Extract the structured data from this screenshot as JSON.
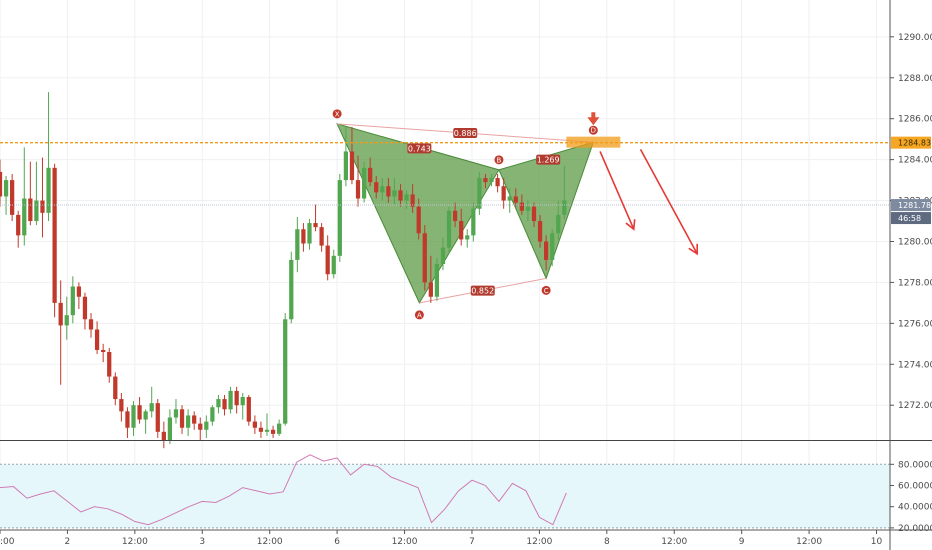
{
  "chart_data": {
    "type": "candlestick",
    "colors": {
      "up": "#53a650",
      "down": "#c0392b",
      "pattern_fill": "#5d9b47",
      "resistance": "#f29b18",
      "arrow": "#e53935",
      "rsi_line": "#d07ab2",
      "rsi_band": "#e6f7fb",
      "grid": "#eef0f2"
    },
    "y_axis": {
      "range": [
        1270.3,
        1291.8
      ],
      "ticks": [
        "1272.00",
        "1274.00",
        "1276.00",
        "1278.00",
        "1280.00",
        "1282.00",
        "1284.00",
        "1286.00",
        "1288.00",
        "1290.00"
      ],
      "tick_values": [
        1272,
        1274,
        1276,
        1278,
        1280,
        1282,
        1284,
        1286,
        1288,
        1290
      ]
    },
    "x_axis": {
      "range": [
        0,
        66
      ],
      "ticks": [
        {
          "label": ":00",
          "x": 0
        },
        {
          "label": "2",
          "x": 5
        },
        {
          "label": "12:00",
          "x": 10
        },
        {
          "label": "3",
          "x": 15
        },
        {
          "label": "12:00",
          "x": 20
        },
        {
          "label": "6",
          "x": 25
        },
        {
          "label": "12:00",
          "x": 30
        },
        {
          "label": "7",
          "x": 35
        },
        {
          "label": "12:00",
          "x": 40
        },
        {
          "label": "8",
          "x": 45
        },
        {
          "label": "12:00",
          "x": 50
        },
        {
          "label": "9",
          "x": 55
        },
        {
          "label": "12:00",
          "x": 60
        },
        {
          "label": "10",
          "x": 65
        }
      ]
    },
    "candles": [
      [
        0.0,
        1283.4,
        1284.0,
        1281.7,
        1282.2
      ],
      [
        0.45,
        1282.2,
        1283.2,
        1281.3,
        1283.0
      ],
      [
        0.9,
        1283.0,
        1283.3,
        1281.0,
        1281.3
      ],
      [
        1.35,
        1281.3,
        1281.5,
        1279.7,
        1280.3
      ],
      [
        1.8,
        1280.3,
        1284.6,
        1279.8,
        1282.1
      ],
      [
        2.25,
        1282.1,
        1283.9,
        1280.8,
        1281.0
      ],
      [
        2.7,
        1281.0,
        1283.9,
        1280.8,
        1282.0
      ],
      [
        3.15,
        1282.0,
        1284.1,
        1280.2,
        1281.4
      ],
      [
        3.6,
        1281.4,
        1287.3,
        1281.0,
        1283.6
      ],
      [
        4.05,
        1283.6,
        1283.8,
        1276.3,
        1277.0
      ],
      [
        4.5,
        1277.0,
        1278.1,
        1273.0,
        1275.9
      ],
      [
        4.95,
        1275.9,
        1277.3,
        1275.2,
        1276.4
      ],
      [
        5.4,
        1276.4,
        1278.3,
        1276.0,
        1277.8
      ],
      [
        5.85,
        1277.8,
        1278.0,
        1276.7,
        1277.3
      ],
      [
        6.3,
        1277.3,
        1277.5,
        1275.7,
        1276.2
      ],
      [
        6.75,
        1276.2,
        1276.5,
        1275.3,
        1275.7
      ],
      [
        7.2,
        1275.7,
        1276.1,
        1274.5,
        1274.7
      ],
      [
        7.65,
        1274.7,
        1275.0,
        1274.1,
        1274.6
      ],
      [
        8.1,
        1274.6,
        1274.8,
        1273.1,
        1273.4
      ],
      [
        8.55,
        1273.4,
        1273.6,
        1272.0,
        1272.3
      ],
      [
        9.0,
        1272.3,
        1272.6,
        1271.2,
        1271.7
      ],
      [
        9.45,
        1271.7,
        1271.9,
        1270.4,
        1270.9
      ],
      [
        9.9,
        1270.9,
        1272.2,
        1270.5,
        1272.0
      ],
      [
        10.35,
        1272.0,
        1272.4,
        1271.1,
        1271.3
      ],
      [
        10.8,
        1271.3,
        1271.8,
        1270.6,
        1271.7
      ],
      [
        11.25,
        1271.7,
        1272.9,
        1271.4,
        1272.1
      ],
      [
        11.7,
        1272.1,
        1272.3,
        1270.4,
        1270.7
      ],
      [
        12.15,
        1270.7,
        1271.2,
        1269.9,
        1270.3
      ],
      [
        12.6,
        1270.3,
        1271.8,
        1270.1,
        1271.4
      ],
      [
        13.05,
        1271.4,
        1272.3,
        1271.1,
        1271.8
      ],
      [
        13.5,
        1271.8,
        1272.0,
        1270.6,
        1270.9
      ],
      [
        13.95,
        1270.9,
        1271.8,
        1270.5,
        1271.5
      ],
      [
        14.4,
        1271.5,
        1271.7,
        1270.8,
        1271.1
      ],
      [
        14.85,
        1271.1,
        1271.4,
        1270.3,
        1270.8
      ],
      [
        15.3,
        1270.8,
        1271.5,
        1270.4,
        1271.2
      ],
      [
        15.75,
        1271.2,
        1272.0,
        1271.0,
        1271.9
      ],
      [
        16.2,
        1271.9,
        1272.5,
        1271.6,
        1272.3
      ],
      [
        16.65,
        1272.3,
        1272.5,
        1271.5,
        1271.8
      ],
      [
        17.1,
        1271.8,
        1272.9,
        1271.6,
        1272.7
      ],
      [
        17.55,
        1272.7,
        1272.9,
        1271.6,
        1272.0
      ],
      [
        18.0,
        1272.0,
        1272.6,
        1271.3,
        1272.4
      ],
      [
        18.45,
        1272.4,
        1272.5,
        1271.0,
        1271.2
      ],
      [
        18.9,
        1271.2,
        1271.5,
        1270.6,
        1270.9
      ],
      [
        19.35,
        1270.9,
        1271.2,
        1270.4,
        1270.7
      ],
      [
        19.8,
        1270.7,
        1271.6,
        1270.5,
        1270.8
      ],
      [
        20.25,
        1270.8,
        1271.0,
        1270.4,
        1270.6
      ],
      [
        20.7,
        1270.6,
        1271.3,
        1270.5,
        1271.1
      ],
      [
        21.15,
        1271.1,
        1276.5,
        1271.0,
        1276.2
      ],
      [
        21.6,
        1276.2,
        1279.5,
        1276.0,
        1279.1
      ],
      [
        22.05,
        1279.1,
        1281.2,
        1278.5,
        1280.6
      ],
      [
        22.5,
        1280.6,
        1280.9,
        1279.5,
        1279.9
      ],
      [
        22.95,
        1279.9,
        1281.1,
        1279.6,
        1280.9
      ],
      [
        23.4,
        1280.9,
        1281.8,
        1280.5,
        1280.7
      ],
      [
        23.85,
        1280.7,
        1280.9,
        1279.5,
        1279.8
      ],
      [
        24.3,
        1279.8,
        1280.3,
        1278.1,
        1278.4
      ],
      [
        24.75,
        1278.4,
        1279.6,
        1278.2,
        1279.3
      ],
      [
        25.2,
        1279.3,
        1283.3,
        1279.0,
        1283.0
      ],
      [
        25.65,
        1283.0,
        1285.6,
        1282.7,
        1284.4
      ],
      [
        26.1,
        1284.4,
        1285.6,
        1282.8,
        1283.0
      ],
      [
        26.55,
        1283.0,
        1284.2,
        1281.7,
        1282.1
      ],
      [
        27.0,
        1282.1,
        1283.9,
        1281.9,
        1283.6
      ],
      [
        27.45,
        1283.6,
        1284.1,
        1282.7,
        1282.9
      ],
      [
        27.9,
        1282.9,
        1283.2,
        1282.1,
        1282.4
      ],
      [
        28.35,
        1282.4,
        1283.1,
        1282.0,
        1282.7
      ],
      [
        28.8,
        1282.7,
        1283.1,
        1281.9,
        1282.2
      ],
      [
        29.25,
        1282.2,
        1283.1,
        1281.8,
        1282.5
      ],
      [
        29.7,
        1282.5,
        1282.8,
        1281.7,
        1282.0
      ],
      [
        30.15,
        1282.0,
        1282.5,
        1281.6,
        1282.3
      ],
      [
        30.6,
        1282.3,
        1282.8,
        1281.4,
        1281.7
      ],
      [
        31.05,
        1281.7,
        1282.1,
        1280.1,
        1280.4
      ],
      [
        31.5,
        1280.4,
        1280.8,
        1277.6,
        1278.0
      ],
      [
        31.95,
        1278.0,
        1279.3,
        1277.0,
        1277.3
      ],
      [
        32.4,
        1277.3,
        1279.2,
        1277.1,
        1278.9
      ],
      [
        32.85,
        1278.9,
        1280.2,
        1278.6,
        1279.7
      ],
      [
        33.3,
        1279.7,
        1281.7,
        1279.4,
        1281.5
      ],
      [
        33.75,
        1281.5,
        1281.9,
        1280.7,
        1281.0
      ],
      [
        34.2,
        1281.0,
        1281.6,
        1279.8,
        1280.1
      ],
      [
        34.65,
        1280.1,
        1280.6,
        1279.7,
        1280.3
      ],
      [
        35.1,
        1280.3,
        1281.9,
        1280.0,
        1281.6
      ],
      [
        35.55,
        1281.6,
        1283.4,
        1281.3,
        1283.1
      ],
      [
        36.0,
        1283.1,
        1283.3,
        1282.6,
        1282.9
      ],
      [
        36.45,
        1282.9,
        1283.3,
        1282.7,
        1283.1
      ],
      [
        36.9,
        1283.1,
        1283.3,
        1282.4,
        1282.7
      ],
      [
        37.35,
        1282.7,
        1283.1,
        1281.6,
        1282.0
      ],
      [
        37.8,
        1282.0,
        1282.6,
        1281.4,
        1282.2
      ],
      [
        38.25,
        1282.2,
        1282.6,
        1281.7,
        1281.9
      ],
      [
        38.7,
        1281.9,
        1282.3,
        1281.3,
        1281.5
      ],
      [
        39.15,
        1281.5,
        1282.0,
        1281.0,
        1281.7
      ],
      [
        39.6,
        1281.7,
        1281.9,
        1280.7,
        1281.0
      ],
      [
        40.05,
        1281.0,
        1281.3,
        1279.7,
        1280.0
      ],
      [
        40.5,
        1280.0,
        1280.3,
        1278.6,
        1279.1
      ],
      [
        40.95,
        1279.1,
        1280.6,
        1278.8,
        1280.4
      ],
      [
        41.4,
        1280.4,
        1282.0,
        1280.1,
        1281.3
      ],
      [
        41.85,
        1281.3,
        1283.7,
        1281.1,
        1282.0
      ]
    ],
    "pattern": {
      "points": [
        {
          "label": "X",
          "x": 25.0,
          "y": 1285.75
        },
        {
          "label": "A",
          "x": 31.1,
          "y": 1277.0
        },
        {
          "label": "B",
          "x": 37.0,
          "y": 1283.5
        },
        {
          "label": "C",
          "x": 40.5,
          "y": 1278.2
        },
        {
          "label": "D",
          "x": 44.0,
          "y": 1284.85
        }
      ],
      "ratios": [
        {
          "label": "0.886",
          "x": 34.5,
          "y": 1285.3
        },
        {
          "label": "0.743",
          "x": 31.1,
          "y": 1284.55
        },
        {
          "label": "1.269",
          "x": 40.65,
          "y": 1284.0
        },
        {
          "label": "0.852",
          "x": 35.8,
          "y": 1277.6
        }
      ]
    },
    "resistance": {
      "y": 1284.83,
      "x_start": 42.0,
      "x_end": 46.0
    },
    "price_tags": {
      "resistance": "1284.83",
      "last": "1281.78",
      "countdown": "46:58"
    },
    "last_y": 1281.78,
    "forecast_arrows": [
      {
        "x1": 44.5,
        "y1": 1284.4,
        "x2": 47.0,
        "y2": 1280.6
      },
      {
        "x1": 47.5,
        "y1": 1284.5,
        "x2": 51.7,
        "y2": 1279.4
      }
    ],
    "rsi": {
      "range": [
        18.0,
        102.0
      ],
      "ticks": [
        "20.0000",
        "40.0000",
        "60.0000",
        "80.0000"
      ],
      "tick_values": [
        20,
        40,
        60,
        80
      ],
      "band": [
        20,
        80
      ],
      "x": [
        0,
        1,
        2,
        3,
        4,
        5,
        6,
        7,
        8,
        9,
        10,
        11,
        12,
        13,
        14,
        15,
        16,
        17,
        18,
        19,
        20,
        21,
        22,
        23,
        24,
        25,
        26,
        27,
        28,
        29,
        30,
        31,
        32,
        33,
        34,
        35,
        36,
        37,
        38,
        39,
        40,
        41,
        42
      ],
      "values": [
        58,
        59,
        48,
        52,
        55,
        45,
        35,
        40,
        38,
        33,
        26,
        23,
        28,
        34,
        40,
        45,
        44,
        50,
        58,
        55,
        52,
        54,
        82,
        89,
        83,
        86,
        70,
        80,
        78,
        68,
        63,
        58,
        25,
        38,
        55,
        65,
        60,
        45,
        62,
        55,
        30,
        23,
        53
      ]
    }
  }
}
